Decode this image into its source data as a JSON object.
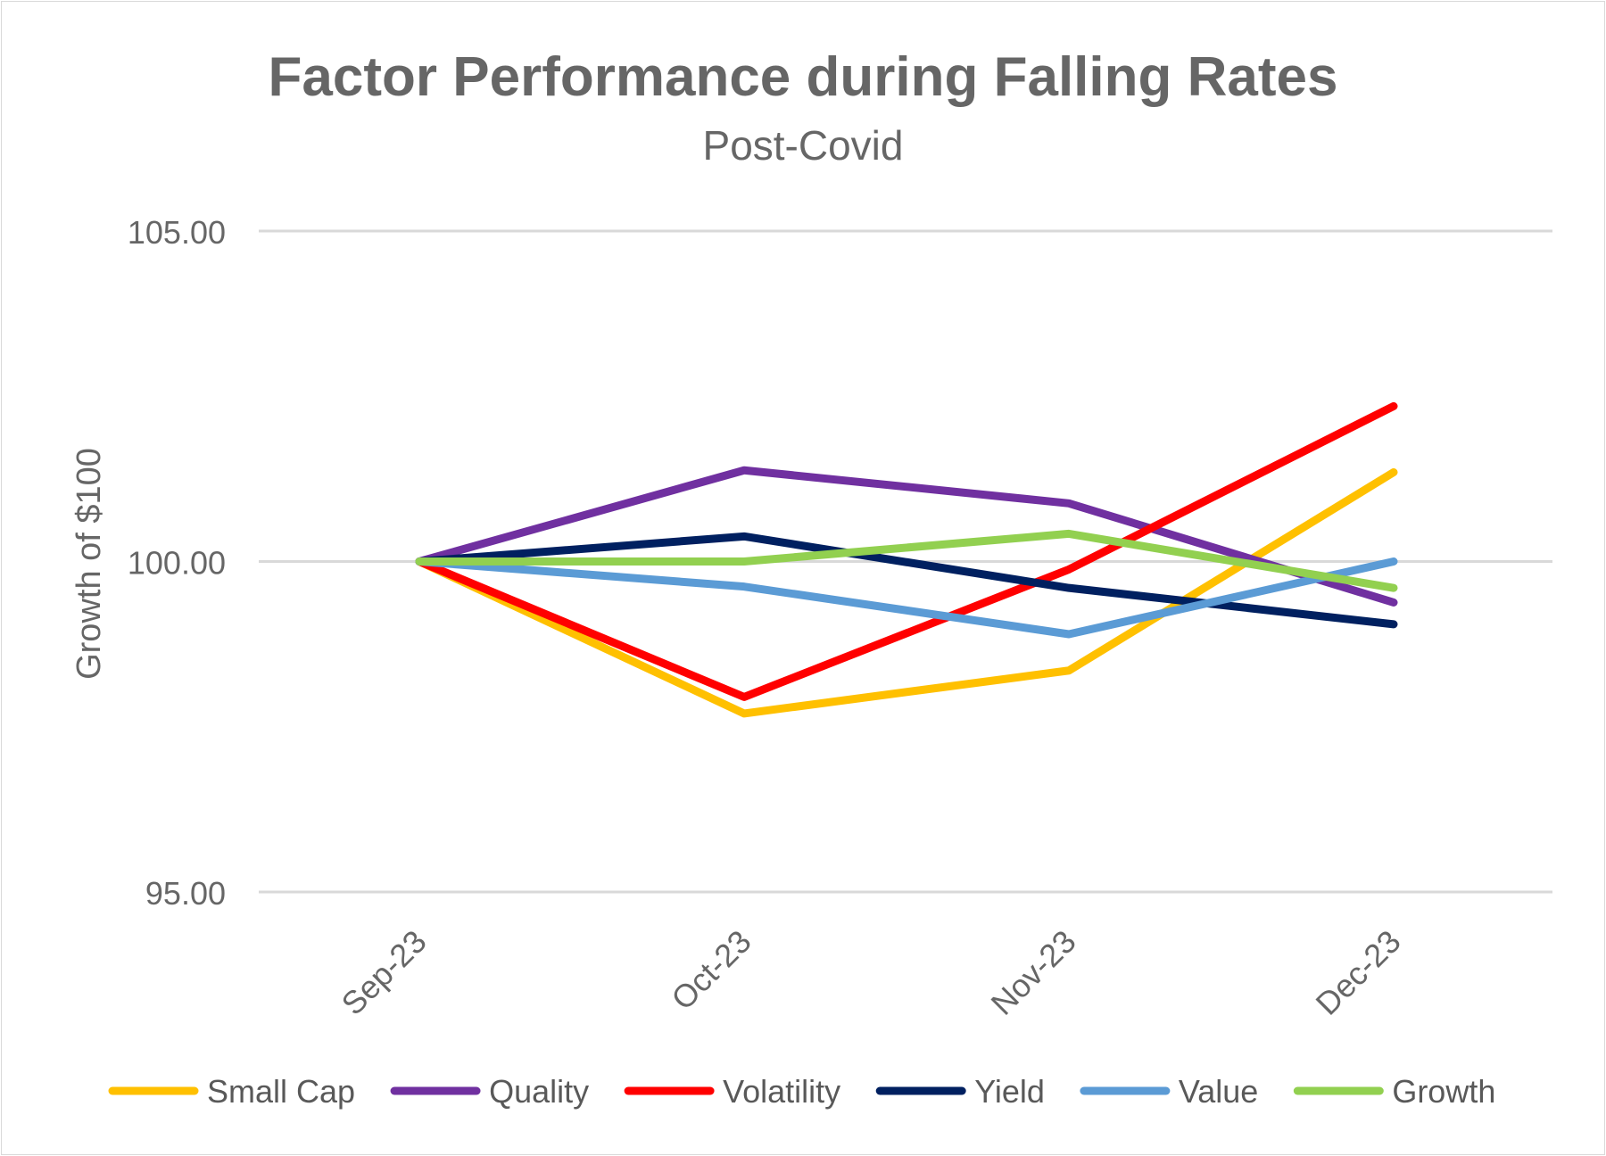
{
  "chart_data": {
    "type": "line",
    "title": "Factor Performance during Falling Rates",
    "subtitle": "Post-Covid",
    "xlabel": "",
    "ylabel": "Growth of $100",
    "categories": [
      "Sep-23",
      "Oct-23",
      "Nov-23",
      "Dec-23"
    ],
    "ylim": [
      95,
      105
    ],
    "yticks": [
      95,
      100,
      105
    ],
    "ytick_labels": [
      "95.00",
      "100.00",
      "105.00"
    ],
    "grid": true,
    "legend_position": "bottom",
    "series": [
      {
        "name": "Small Cap",
        "color": "#FFC000",
        "values": [
          100.0,
          97.7,
          98.35,
          101.35
        ]
      },
      {
        "name": "Quality",
        "color": "#7030A0",
        "values": [
          100.0,
          101.38,
          100.88,
          99.38
        ]
      },
      {
        "name": "Volatility",
        "color": "#FF0000",
        "values": [
          100.0,
          97.95,
          99.88,
          102.35
        ]
      },
      {
        "name": "Yield",
        "color": "#002060",
        "values": [
          100.0,
          100.38,
          99.6,
          99.05
        ]
      },
      {
        "name": "Value",
        "color": "#5B9BD5",
        "values": [
          100.0,
          99.62,
          98.9,
          100.0
        ]
      },
      {
        "name": "Growth",
        "color": "#92D050",
        "values": [
          100.0,
          100.0,
          100.42,
          99.6
        ]
      }
    ]
  }
}
